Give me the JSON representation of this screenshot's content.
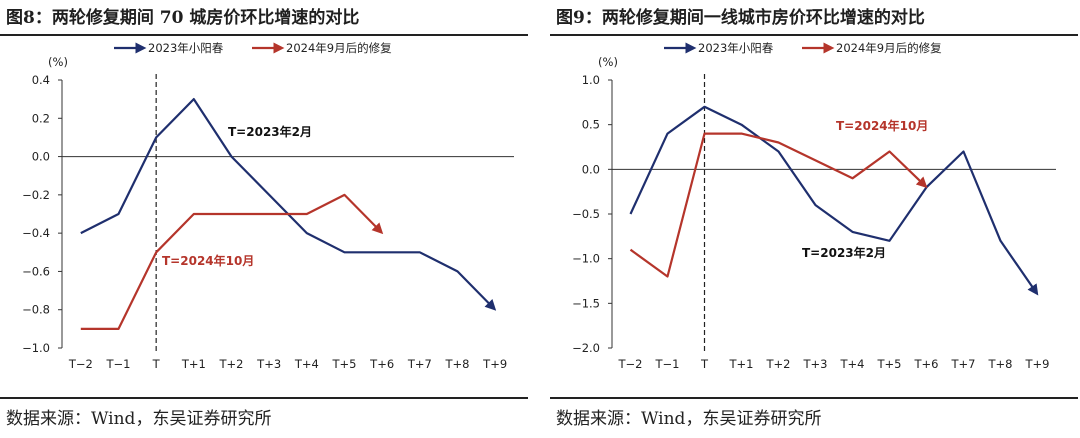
{
  "colors": {
    "navy": "#1f2f6e",
    "red": "#b5352b"
  },
  "panels": [
    {
      "title": "图8：两轮修复期间 70 城房价环比增速的对比",
      "source": "数据来源：Wind，东吴证券研究所"
    },
    {
      "title": "图9：两轮修复期间一线城市房价环比增速的对比",
      "source": "数据来源：Wind，东吴证券研究所"
    }
  ],
  "chart_data": [
    {
      "type": "line",
      "y_unit": "(%)",
      "categories": [
        "T-2",
        "T-1",
        "T",
        "T+1",
        "T+2",
        "T+3",
        "T+4",
        "T+5",
        "T+6",
        "T+7",
        "T+8",
        "T+9"
      ],
      "ylim": [
        -1.0,
        0.4
      ],
      "yticks": [
        "0.4",
        "0.2",
        "0.0",
        "-0.2",
        "-0.4",
        "-0.6",
        "-0.8",
        "-1.0"
      ],
      "grid": false,
      "legend_position": "top",
      "series": [
        {
          "name": "2023年小阳春",
          "color": "#1f2f6e",
          "values": [
            -0.4,
            -0.3,
            0.1,
            0.3,
            0.0,
            -0.2,
            -0.4,
            -0.5,
            -0.5,
            -0.5,
            -0.6,
            -0.8
          ]
        },
        {
          "name": "2024年9月后的修复",
          "color": "#b5352b",
          "values": [
            -0.9,
            -0.9,
            -0.5,
            -0.3,
            -0.3,
            -0.3,
            -0.3,
            -0.2,
            -0.4,
            null,
            null,
            null
          ]
        }
      ],
      "annotations": [
        {
          "text": "T=2023年2月",
          "color": "#111111"
        },
        {
          "text": "T=2024年10月",
          "color": "#b5352b"
        }
      ]
    },
    {
      "type": "line",
      "y_unit": "(%)",
      "categories": [
        "T-2",
        "T-1",
        "T",
        "T+1",
        "T+2",
        "T+3",
        "T+4",
        "T+5",
        "T+6",
        "T+7",
        "T+8",
        "T+9"
      ],
      "ylim": [
        -2.0,
        1.0
      ],
      "yticks": [
        "1.0",
        "0.5",
        "0.0",
        "-0.5",
        "-1.0",
        "-1.5",
        "-2.0"
      ],
      "grid": false,
      "legend_position": "top",
      "series": [
        {
          "name": "2023年小阳春",
          "color": "#1f2f6e",
          "values": [
            -0.5,
            0.4,
            0.7,
            0.5,
            0.2,
            -0.4,
            -0.7,
            -0.8,
            -0.2,
            0.2,
            -0.8,
            -1.4
          ]
        },
        {
          "name": "2024年9月后的修复",
          "color": "#b5352b",
          "values": [
            -0.9,
            -1.2,
            0.4,
            0.4,
            0.3,
            0.1,
            -0.1,
            0.2,
            -0.2,
            null,
            null,
            null
          ]
        }
      ],
      "annotations": [
        {
          "text": "T=2024年10月",
          "color": "#b5352b"
        },
        {
          "text": "T=2023年2月",
          "color": "#111111"
        }
      ]
    }
  ]
}
